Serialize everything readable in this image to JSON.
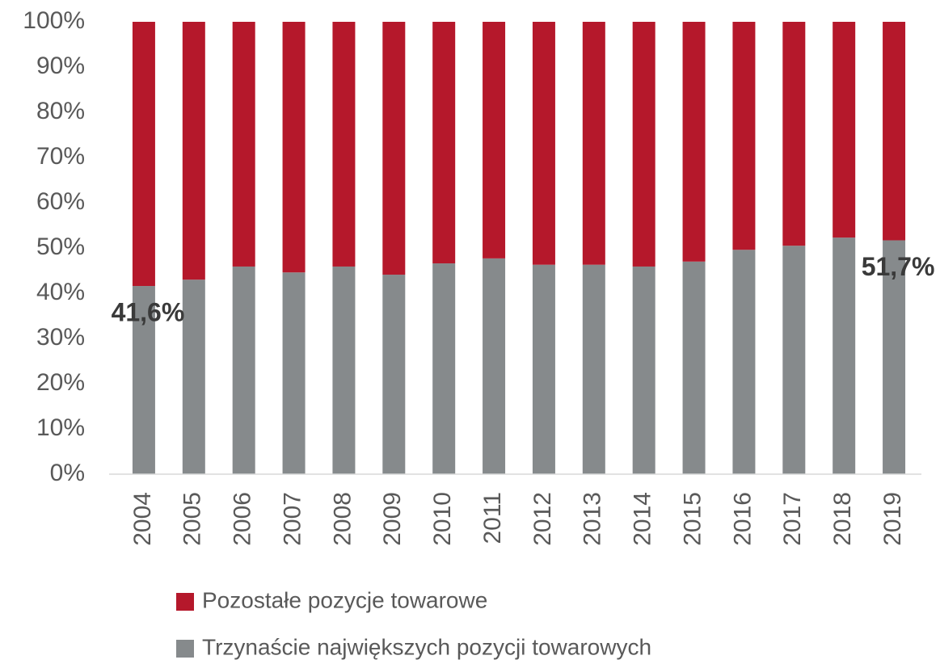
{
  "chart_data": {
    "type": "stacked_bar",
    "categories": [
      "2004",
      "2005",
      "2006",
      "2007",
      "2008",
      "2009",
      "2010",
      "2011",
      "2012",
      "2013",
      "2014",
      "2015",
      "2016",
      "2017",
      "2018",
      "2019"
    ],
    "series": [
      {
        "name": "Pozostałe pozycje towarowe",
        "color": "#b5182b",
        "values": [
          58.4,
          57.0,
          54.1,
          55.4,
          54.1,
          55.9,
          53.4,
          52.3,
          53.7,
          53.7,
          54.1,
          53.0,
          50.4,
          49.5,
          47.7,
          48.3
        ]
      },
      {
        "name": "Trzynaście największych pozycji towarowych",
        "color": "#868a8c",
        "values": [
          41.6,
          43.0,
          45.9,
          44.6,
          45.9,
          44.1,
          46.6,
          47.7,
          46.3,
          46.3,
          45.9,
          47.0,
          49.6,
          50.5,
          52.3,
          51.7
        ],
        "value_labels": [
          "41,6%",
          null,
          null,
          null,
          null,
          null,
          null,
          null,
          null,
          null,
          null,
          null,
          null,
          null,
          null,
          "51,7%"
        ]
      }
    ],
    "ylim": [
      0,
      100
    ],
    "yticks": [
      {
        "value": 0,
        "label": "0%"
      },
      {
        "value": 10,
        "label": "10%"
      },
      {
        "value": 20,
        "label": "20%"
      },
      {
        "value": 30,
        "label": "30%"
      },
      {
        "value": 40,
        "label": "40%"
      },
      {
        "value": 50,
        "label": "50%"
      },
      {
        "value": 60,
        "label": "60%"
      },
      {
        "value": 70,
        "label": "70%"
      },
      {
        "value": 80,
        "label": "80%"
      },
      {
        "value": 90,
        "label": "90%"
      },
      {
        "value": 100,
        "label": "100%"
      }
    ],
    "grid": false,
    "legend": "bottom"
  }
}
